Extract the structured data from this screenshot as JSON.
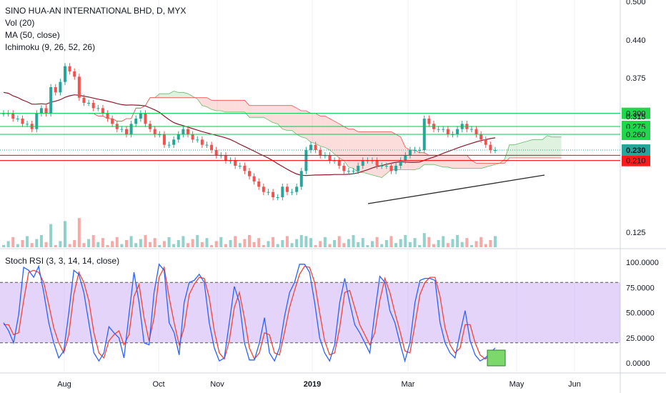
{
  "header": {
    "symbol_line": "SINO HUA-AN INTERNATIONAL BHD, D, MYX",
    "indicators": [
      "Vol (20)",
      "MA (50, close)",
      "Ichimoku (9, 26, 52, 26)"
    ]
  },
  "rsi_panel": {
    "title": "Stoch RSI (3, 3, 14, 14, close)"
  },
  "colors": {
    "up": "#26a69a",
    "down": "#ef5350",
    "ma": "#8b1a2b",
    "hline_green": "#00c853",
    "hline_red": "#ff0000",
    "last_price_badge": "#26a69a",
    "rsi_k": "#2962ff",
    "rsi_d": "#f44336",
    "rsi_band": "#c59ff5",
    "highlight_box": "#7cd86a"
  },
  "chart_data": [
    {
      "type": "candlestick",
      "title": "SINO HUA-AN INTERNATIONAL BHD, D, MYX",
      "price_axis_labels": [
        "0.500",
        "0.440",
        "0.375",
        "0.315",
        "0.125"
      ],
      "time_axis_labels": [
        "Aug",
        "Oct",
        "Nov",
        "2019",
        "Mar",
        "May",
        "Jun"
      ],
      "last_price": "0.230",
      "horizontal_levels": [
        {
          "label": "0.300",
          "value": 0.3,
          "color": "green"
        },
        {
          "label": "0.275",
          "value": 0.275,
          "color": "green"
        },
        {
          "label": "0.260",
          "value": 0.26,
          "color": "green"
        },
        {
          "label": "0.220",
          "value": 0.22,
          "color": "red"
        },
        {
          "label": "0.210",
          "value": 0.21,
          "color": "red"
        }
      ],
      "close_series": [
        0.3,
        0.3,
        0.29,
        0.29,
        0.28,
        0.28,
        0.27,
        0.3,
        0.31,
        0.3,
        0.35,
        0.34,
        0.36,
        0.39,
        0.38,
        0.37,
        0.33,
        0.32,
        0.32,
        0.31,
        0.31,
        0.3,
        0.29,
        0.28,
        0.27,
        0.27,
        0.26,
        0.28,
        0.29,
        0.3,
        0.28,
        0.27,
        0.26,
        0.26,
        0.24,
        0.24,
        0.25,
        0.26,
        0.27,
        0.26,
        0.25,
        0.25,
        0.24,
        0.24,
        0.23,
        0.22,
        0.22,
        0.21,
        0.21,
        0.2,
        0.2,
        0.19,
        0.18,
        0.17,
        0.16,
        0.15,
        0.15,
        0.14,
        0.14,
        0.16,
        0.15,
        0.15,
        0.16,
        0.19,
        0.23,
        0.24,
        0.23,
        0.22,
        0.22,
        0.21,
        0.21,
        0.2,
        0.19,
        0.19,
        0.19,
        0.2,
        0.21,
        0.21,
        0.21,
        0.2,
        0.2,
        0.2,
        0.19,
        0.2,
        0.21,
        0.22,
        0.23,
        0.23,
        0.23,
        0.29,
        0.28,
        0.27,
        0.27,
        0.27,
        0.26,
        0.26,
        0.27,
        0.28,
        0.27,
        0.27,
        0.26,
        0.25,
        0.24,
        0.23,
        0.23
      ],
      "rsi": {
        "y_axis_labels": [
          "100.0000",
          "75.0000",
          "50.0000",
          "25.0000",
          "0.0000"
        ],
        "upper_band": 80,
        "lower_band": 20,
        "k": [
          40,
          32,
          20,
          48,
          95,
          92,
          85,
          96,
          70,
          40,
          20,
          5,
          12,
          50,
          92,
          88,
          70,
          40,
          10,
          2,
          10,
          36,
          30,
          25,
          5,
          48,
          90,
          60,
          20,
          18,
          70,
          98,
          92,
          40,
          30,
          8,
          60,
          80,
          82,
          88,
          80,
          40,
          15,
          2,
          5,
          40,
          76,
          60,
          20,
          3,
          3,
          20,
          45,
          10,
          2,
          15,
          46,
          70,
          80,
          98,
          98,
          90,
          60,
          25,
          10,
          2,
          18,
          60,
          84,
          60,
          38,
          30,
          20,
          10,
          50,
          86,
          80,
          52,
          40,
          20,
          2,
          20,
          60,
          82,
          84,
          84,
          82,
          40,
          20,
          10,
          5,
          30,
          52,
          22,
          8,
          2,
          5,
          10,
          15
        ],
        "d": [
          38,
          38,
          28,
          30,
          62,
          90,
          92,
          90,
          80,
          58,
          35,
          20,
          10,
          28,
          68,
          90,
          80,
          62,
          30,
          10,
          5,
          22,
          28,
          32,
          18,
          28,
          66,
          78,
          45,
          22,
          45,
          85,
          95,
          65,
          40,
          18,
          35,
          68,
          78,
          85,
          84,
          65,
          32,
          10,
          4,
          22,
          55,
          70,
          45,
          15,
          4,
          10,
          30,
          28,
          10,
          8,
          30,
          55,
          72,
          88,
          96,
          95,
          80,
          50,
          22,
          8,
          10,
          35,
          70,
          72,
          55,
          38,
          28,
          18,
          30,
          62,
          84,
          70,
          50,
          32,
          12,
          10,
          38,
          68,
          80,
          85,
          85,
          66,
          35,
          18,
          10,
          15,
          38,
          38,
          20,
          8,
          4,
          7,
          12
        ]
      }
    }
  ]
}
